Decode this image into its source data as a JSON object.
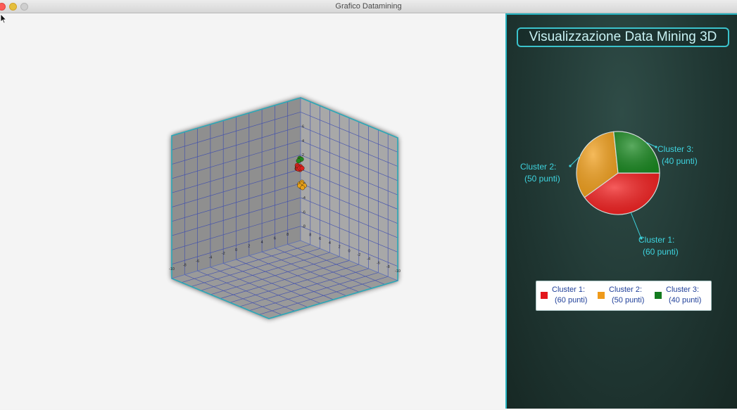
{
  "window": {
    "title": "Grafico Datamining"
  },
  "sidebar": {
    "title": "Visualizzazione Data Mining 3D",
    "background": "#203733",
    "accent": "#3bc3cc"
  },
  "chart_data": [
    {
      "type": "scatter",
      "title": "",
      "axes": {
        "back_wall_x_ticks": [
          "-10",
          "-8",
          "-6",
          "-4",
          "-2",
          "0",
          "2",
          "4",
          "6",
          "8"
        ],
        "right_wall_ticks": [
          "8",
          "6",
          "4",
          "2",
          "0",
          "-2",
          "-4",
          "-6",
          "-8",
          "-10"
        ],
        "vertical_ticks": [
          "6",
          "4",
          "2",
          "0",
          "-2",
          "-4",
          "-6",
          "-8"
        ],
        "range": [
          -10,
          10
        ],
        "grid": true,
        "grid_color": "#3a4ab0",
        "wall_color": "#a8a8a8",
        "edge_color": "#2aa8b8"
      },
      "series": [
        {
          "color": "#e01e1e",
          "cluster": "1",
          "points": [
            [
              9.0,
              9.4,
              0.5
            ],
            [
              9.2,
              9.6,
              0.7
            ],
            [
              9.4,
              9.3,
              0.3
            ],
            [
              9.1,
              9.5,
              0.9
            ],
            [
              9.3,
              9.7,
              0.4
            ],
            [
              9.6,
              9.5,
              0.6
            ],
            [
              9.0,
              9.2,
              0.8
            ],
            [
              9.5,
              9.8,
              0.2
            ],
            [
              9.2,
              9.1,
              0.6
            ],
            [
              9.7,
              9.3,
              0.4
            ]
          ]
        },
        {
          "color": "#e8a21a",
          "cluster": "2",
          "points": [
            [
              9.2,
              9.1,
              -1.6
            ],
            [
              9.4,
              9.0,
              -1.8
            ],
            [
              9.6,
              9.2,
              -1.5
            ],
            [
              9.3,
              8.9,
              -2.0
            ],
            [
              9.5,
              9.1,
              -1.7
            ],
            [
              9.7,
              8.8,
              -1.9
            ],
            [
              9.1,
              9.0,
              -1.8
            ],
            [
              9.4,
              8.8,
              -2.1
            ]
          ]
        },
        {
          "color": "#1e8a1e",
          "cluster": "3",
          "points": [
            [
              9.8,
              9.9,
              1.6
            ],
            [
              9.7,
              9.8,
              1.4
            ],
            [
              9.9,
              9.7,
              1.5
            ],
            [
              9.6,
              9.9,
              1.3
            ]
          ]
        }
      ]
    },
    {
      "type": "pie",
      "title": "",
      "slices": [
        {
          "label_line1": "Cluster 1:",
          "label_line2": "(60 punti)",
          "value": 60,
          "color": "#f21d1d"
        },
        {
          "label_line1": "Cluster 2:",
          "label_line2": "(50 punti)",
          "value": 50,
          "color": "#f2a01c"
        },
        {
          "label_line1": "Cluster 3:",
          "label_line2": "(40 punti)",
          "value": 40,
          "color": "#1b8a22"
        }
      ],
      "legend": {
        "placement": "bottom",
        "items": [
          {
            "line1": "Cluster 1:",
            "line2": "(60 punti)",
            "color": "#e3161c"
          },
          {
            "line1": "Cluster 2:",
            "line2": "(50 punti)",
            "color": "#ef9a1a"
          },
          {
            "line1": "Cluster 3:",
            "line2": "(40 punti)",
            "color": "#137b1f"
          }
        ]
      }
    }
  ]
}
